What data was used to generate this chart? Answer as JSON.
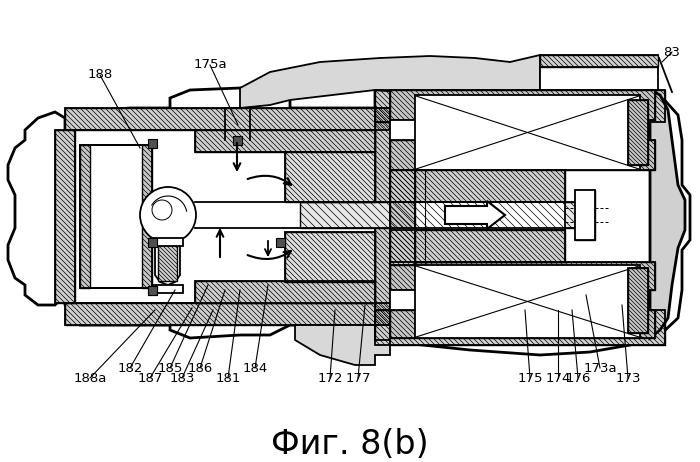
{
  "title": "Фиг. 8(b)",
  "title_fontsize": 24,
  "bg_color": "#ffffff",
  "line_color": "#000000",
  "fig_width": 7.0,
  "fig_height": 4.62,
  "dpi": 100,
  "label_fontsize": 9.5,
  "labels": [
    [
      "188",
      100,
      75,
      140,
      148
    ],
    [
      "175a",
      210,
      65,
      238,
      125
    ],
    [
      "83",
      672,
      52,
      662,
      62
    ],
    [
      "182",
      130,
      368,
      175,
      290
    ],
    [
      "188a",
      90,
      378,
      155,
      310
    ],
    [
      "185",
      170,
      368,
      208,
      285
    ],
    [
      "187",
      150,
      378,
      192,
      308
    ],
    [
      "186",
      200,
      368,
      225,
      290
    ],
    [
      "183",
      182,
      378,
      213,
      310
    ],
    [
      "181",
      228,
      378,
      240,
      290
    ],
    [
      "184",
      255,
      368,
      268,
      285
    ],
    [
      "172",
      330,
      378,
      335,
      310
    ],
    [
      "177",
      358,
      378,
      365,
      305
    ],
    [
      "175",
      530,
      378,
      525,
      310
    ],
    [
      "174",
      558,
      378,
      558,
      310
    ],
    [
      "173a",
      600,
      368,
      586,
      295
    ],
    [
      "176",
      578,
      378,
      572,
      310
    ],
    [
      "173",
      628,
      378,
      622,
      305
    ]
  ]
}
